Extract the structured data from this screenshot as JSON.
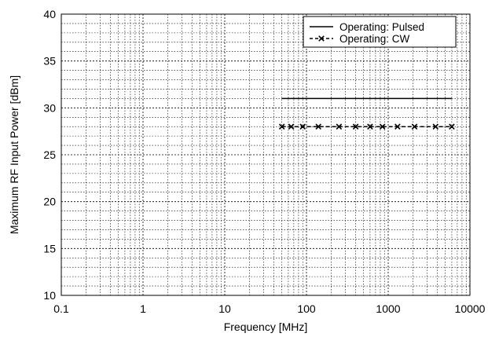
{
  "chart_data": {
    "type": "line",
    "title": "",
    "xlabel": "Frequency [MHz]",
    "ylabel": "Maximum RF Input Power [dBm]",
    "xscale": "log",
    "xlim": [
      0.1,
      10000
    ],
    "ylim": [
      10,
      40
    ],
    "xticks": [
      "0.1",
      "1",
      "10",
      "100",
      "1000",
      "10000"
    ],
    "yticks": [
      "10",
      "15",
      "20",
      "25",
      "30",
      "35",
      "40"
    ],
    "grid": true,
    "legend_position": "top-right",
    "series": [
      {
        "name": "Operating: Pulsed",
        "style": "solid",
        "marker": "none",
        "x": [
          50,
          6000
        ],
        "y": [
          31,
          31
        ]
      },
      {
        "name": "Operating: CW",
        "style": "dashed",
        "marker": "x",
        "x": [
          50,
          65,
          90,
          140,
          250,
          400,
          600,
          850,
          1300,
          2100,
          3800,
          6000
        ],
        "y": [
          28,
          28,
          28,
          28,
          28,
          28,
          28,
          28,
          28,
          28,
          28,
          28
        ]
      }
    ],
    "colors": {
      "series": "#000000",
      "grid": "#000000",
      "background": "#ffffff"
    }
  }
}
